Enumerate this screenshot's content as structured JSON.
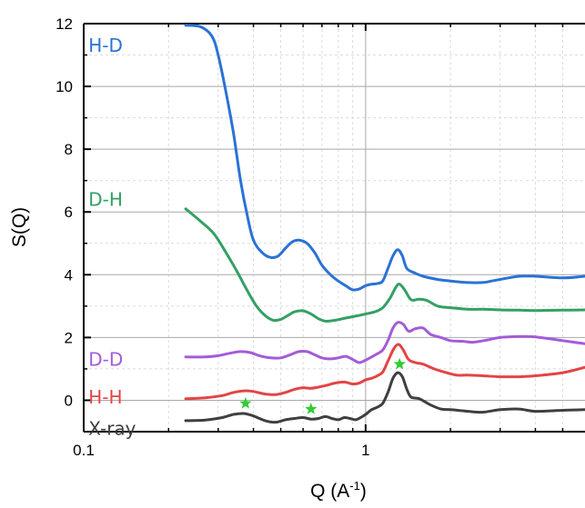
{
  "chart_data": {
    "type": "line",
    "xlabel_main": "Q (A",
    "xlabel_exp": "-1",
    "xlabel_close": ")",
    "ylabel": "S(Q)",
    "xscale": "log",
    "xlim": [
      0.1,
      6.0
    ],
    "ylim": [
      -1.0,
      12.0
    ],
    "grid": true,
    "x_ticks": [
      {
        "value": 0.1,
        "label": "0.1"
      },
      {
        "value": 1,
        "label": "1"
      }
    ],
    "y_ticks": [
      {
        "value": 0,
        "label": "0"
      },
      {
        "value": 2,
        "label": "2"
      },
      {
        "value": 4,
        "label": "4"
      },
      {
        "value": 6,
        "label": "6"
      },
      {
        "value": 8,
        "label": "8"
      },
      {
        "value": 10,
        "label": "10"
      },
      {
        "value": 12,
        "label": "12"
      }
    ],
    "series": [
      {
        "name": "H-D",
        "color": "#2a72d6",
        "label_pos": [
          0.104,
          11.3
        ],
        "points": [
          [
            0.23,
            11.95
          ],
          [
            0.26,
            11.9
          ],
          [
            0.285,
            11.6
          ],
          [
            0.3,
            11.0
          ],
          [
            0.32,
            9.8
          ],
          [
            0.34,
            8.5
          ],
          [
            0.36,
            7.0
          ],
          [
            0.38,
            5.9
          ],
          [
            0.4,
            5.1
          ],
          [
            0.43,
            4.7
          ],
          [
            0.46,
            4.55
          ],
          [
            0.49,
            4.6
          ],
          [
            0.52,
            4.85
          ],
          [
            0.55,
            5.05
          ],
          [
            0.58,
            5.1
          ],
          [
            0.62,
            5.0
          ],
          [
            0.66,
            4.7
          ],
          [
            0.7,
            4.3
          ],
          [
            0.75,
            4.0
          ],
          [
            0.8,
            3.8
          ],
          [
            0.85,
            3.65
          ],
          [
            0.9,
            3.52
          ],
          [
            0.95,
            3.55
          ],
          [
            1.0,
            3.65
          ],
          [
            1.05,
            3.7
          ],
          [
            1.1,
            3.72
          ],
          [
            1.15,
            3.8
          ],
          [
            1.2,
            4.2
          ],
          [
            1.25,
            4.6
          ],
          [
            1.3,
            4.8
          ],
          [
            1.35,
            4.6
          ],
          [
            1.4,
            4.2
          ],
          [
            1.5,
            4.05
          ],
          [
            1.6,
            3.95
          ],
          [
            1.8,
            3.85
          ],
          [
            2.0,
            3.8
          ],
          [
            2.3,
            3.75
          ],
          [
            2.6,
            3.75
          ],
          [
            2.8,
            3.8
          ],
          [
            3.0,
            3.85
          ],
          [
            3.5,
            3.95
          ],
          [
            4.0,
            3.95
          ],
          [
            5.0,
            3.9
          ],
          [
            6.0,
            3.95
          ]
        ]
      },
      {
        "name": "D-H",
        "color": "#33a064",
        "label_pos": [
          0.104,
          6.4
        ],
        "points": [
          [
            0.23,
            6.1
          ],
          [
            0.26,
            5.7
          ],
          [
            0.29,
            5.3
          ],
          [
            0.32,
            4.7
          ],
          [
            0.35,
            4.1
          ],
          [
            0.38,
            3.5
          ],
          [
            0.41,
            3.0
          ],
          [
            0.44,
            2.7
          ],
          [
            0.47,
            2.55
          ],
          [
            0.5,
            2.58
          ],
          [
            0.53,
            2.7
          ],
          [
            0.56,
            2.82
          ],
          [
            0.6,
            2.85
          ],
          [
            0.64,
            2.75
          ],
          [
            0.68,
            2.6
          ],
          [
            0.72,
            2.52
          ],
          [
            0.78,
            2.55
          ],
          [
            0.85,
            2.62
          ],
          [
            0.92,
            2.68
          ],
          [
            1.0,
            2.75
          ],
          [
            1.08,
            2.82
          ],
          [
            1.15,
            2.95
          ],
          [
            1.22,
            3.25
          ],
          [
            1.28,
            3.6
          ],
          [
            1.32,
            3.7
          ],
          [
            1.38,
            3.5
          ],
          [
            1.45,
            3.2
          ],
          [
            1.55,
            3.22
          ],
          [
            1.65,
            3.18
          ],
          [
            1.8,
            3.0
          ],
          [
            2.0,
            2.95
          ],
          [
            2.3,
            2.9
          ],
          [
            2.6,
            2.9
          ],
          [
            3.0,
            2.88
          ],
          [
            3.5,
            2.87
          ],
          [
            4.0,
            2.86
          ],
          [
            5.0,
            2.87
          ],
          [
            6.0,
            2.88
          ]
        ]
      },
      {
        "name": "D-D",
        "color": "#a35cd8",
        "label_pos": [
          0.104,
          1.3
        ],
        "points": [
          [
            0.23,
            1.38
          ],
          [
            0.27,
            1.38
          ],
          [
            0.3,
            1.42
          ],
          [
            0.33,
            1.5
          ],
          [
            0.36,
            1.55
          ],
          [
            0.39,
            1.52
          ],
          [
            0.42,
            1.42
          ],
          [
            0.46,
            1.35
          ],
          [
            0.5,
            1.35
          ],
          [
            0.54,
            1.45
          ],
          [
            0.58,
            1.55
          ],
          [
            0.62,
            1.55
          ],
          [
            0.66,
            1.45
          ],
          [
            0.7,
            1.35
          ],
          [
            0.75,
            1.32
          ],
          [
            0.8,
            1.35
          ],
          [
            0.85,
            1.4
          ],
          [
            0.9,
            1.3
          ],
          [
            0.95,
            1.2
          ],
          [
            1.0,
            1.28
          ],
          [
            1.05,
            1.38
          ],
          [
            1.1,
            1.48
          ],
          [
            1.15,
            1.6
          ],
          [
            1.2,
            1.9
          ],
          [
            1.25,
            2.3
          ],
          [
            1.3,
            2.48
          ],
          [
            1.36,
            2.42
          ],
          [
            1.42,
            2.2
          ],
          [
            1.5,
            2.28
          ],
          [
            1.6,
            2.3
          ],
          [
            1.7,
            2.1
          ],
          [
            1.85,
            2.0
          ],
          [
            2.0,
            1.9
          ],
          [
            2.2,
            1.88
          ],
          [
            2.4,
            1.85
          ],
          [
            2.7,
            1.92
          ],
          [
            3.0,
            2.0
          ],
          [
            3.5,
            2.03
          ],
          [
            4.0,
            2.02
          ],
          [
            5.0,
            1.9
          ],
          [
            6.0,
            1.8
          ]
        ]
      },
      {
        "name": "H-H",
        "color": "#e34444",
        "label_pos": [
          0.104,
          0.1
        ],
        "points": [
          [
            0.23,
            0.05
          ],
          [
            0.27,
            0.08
          ],
          [
            0.31,
            0.15
          ],
          [
            0.34,
            0.25
          ],
          [
            0.37,
            0.3
          ],
          [
            0.4,
            0.28
          ],
          [
            0.44,
            0.2
          ],
          [
            0.48,
            0.18
          ],
          [
            0.52,
            0.25
          ],
          [
            0.56,
            0.35
          ],
          [
            0.6,
            0.4
          ],
          [
            0.64,
            0.38
          ],
          [
            0.68,
            0.42
          ],
          [
            0.73,
            0.48
          ],
          [
            0.78,
            0.55
          ],
          [
            0.84,
            0.58
          ],
          [
            0.9,
            0.52
          ],
          [
            0.95,
            0.55
          ],
          [
            1.0,
            0.65
          ],
          [
            1.05,
            0.7
          ],
          [
            1.1,
            0.78
          ],
          [
            1.15,
            0.9
          ],
          [
            1.2,
            1.25
          ],
          [
            1.26,
            1.65
          ],
          [
            1.31,
            1.78
          ],
          [
            1.36,
            1.6
          ],
          [
            1.42,
            1.3
          ],
          [
            1.5,
            1.2
          ],
          [
            1.6,
            1.15
          ],
          [
            1.75,
            1.0
          ],
          [
            1.9,
            0.9
          ],
          [
            2.1,
            0.8
          ],
          [
            2.3,
            0.8
          ],
          [
            2.6,
            0.78
          ],
          [
            3.0,
            0.75
          ],
          [
            3.5,
            0.75
          ],
          [
            4.0,
            0.78
          ],
          [
            5.0,
            0.88
          ],
          [
            6.0,
            1.05
          ]
        ]
      },
      {
        "name": "X-ray",
        "color": "#3f3f3f",
        "label_pos": [
          0.104,
          -0.9
        ],
        "points": [
          [
            0.23,
            -0.65
          ],
          [
            0.27,
            -0.63
          ],
          [
            0.31,
            -0.55
          ],
          [
            0.34,
            -0.45
          ],
          [
            0.37,
            -0.42
          ],
          [
            0.4,
            -0.5
          ],
          [
            0.44,
            -0.65
          ],
          [
            0.48,
            -0.7
          ],
          [
            0.52,
            -0.62
          ],
          [
            0.56,
            -0.58
          ],
          [
            0.6,
            -0.55
          ],
          [
            0.64,
            -0.6
          ],
          [
            0.68,
            -0.58
          ],
          [
            0.72,
            -0.52
          ],
          [
            0.76,
            -0.58
          ],
          [
            0.8,
            -0.62
          ],
          [
            0.84,
            -0.55
          ],
          [
            0.88,
            -0.58
          ],
          [
            0.92,
            -0.62
          ],
          [
            0.96,
            -0.55
          ],
          [
            1.0,
            -0.45
          ],
          [
            1.05,
            -0.3
          ],
          [
            1.1,
            -0.22
          ],
          [
            1.15,
            -0.1
          ],
          [
            1.2,
            0.25
          ],
          [
            1.25,
            0.7
          ],
          [
            1.3,
            0.88
          ],
          [
            1.35,
            0.75
          ],
          [
            1.4,
            0.35
          ],
          [
            1.45,
            0.1
          ],
          [
            1.55,
            0.05
          ],
          [
            1.7,
            -0.15
          ],
          [
            1.85,
            -0.28
          ],
          [
            2.0,
            -0.3
          ],
          [
            2.3,
            -0.35
          ],
          [
            2.6,
            -0.38
          ],
          [
            3.0,
            -0.3
          ],
          [
            3.5,
            -0.28
          ],
          [
            4.0,
            -0.35
          ],
          [
            5.0,
            -0.32
          ],
          [
            6.0,
            -0.3
          ]
        ]
      }
    ],
    "stars": [
      {
        "x": 0.375,
        "y": -0.1,
        "color": "#33cc33"
      },
      {
        "x": 0.64,
        "y": -0.28,
        "color": "#33cc33"
      },
      {
        "x": 1.32,
        "y": 1.15,
        "color": "#33cc33"
      }
    ]
  }
}
